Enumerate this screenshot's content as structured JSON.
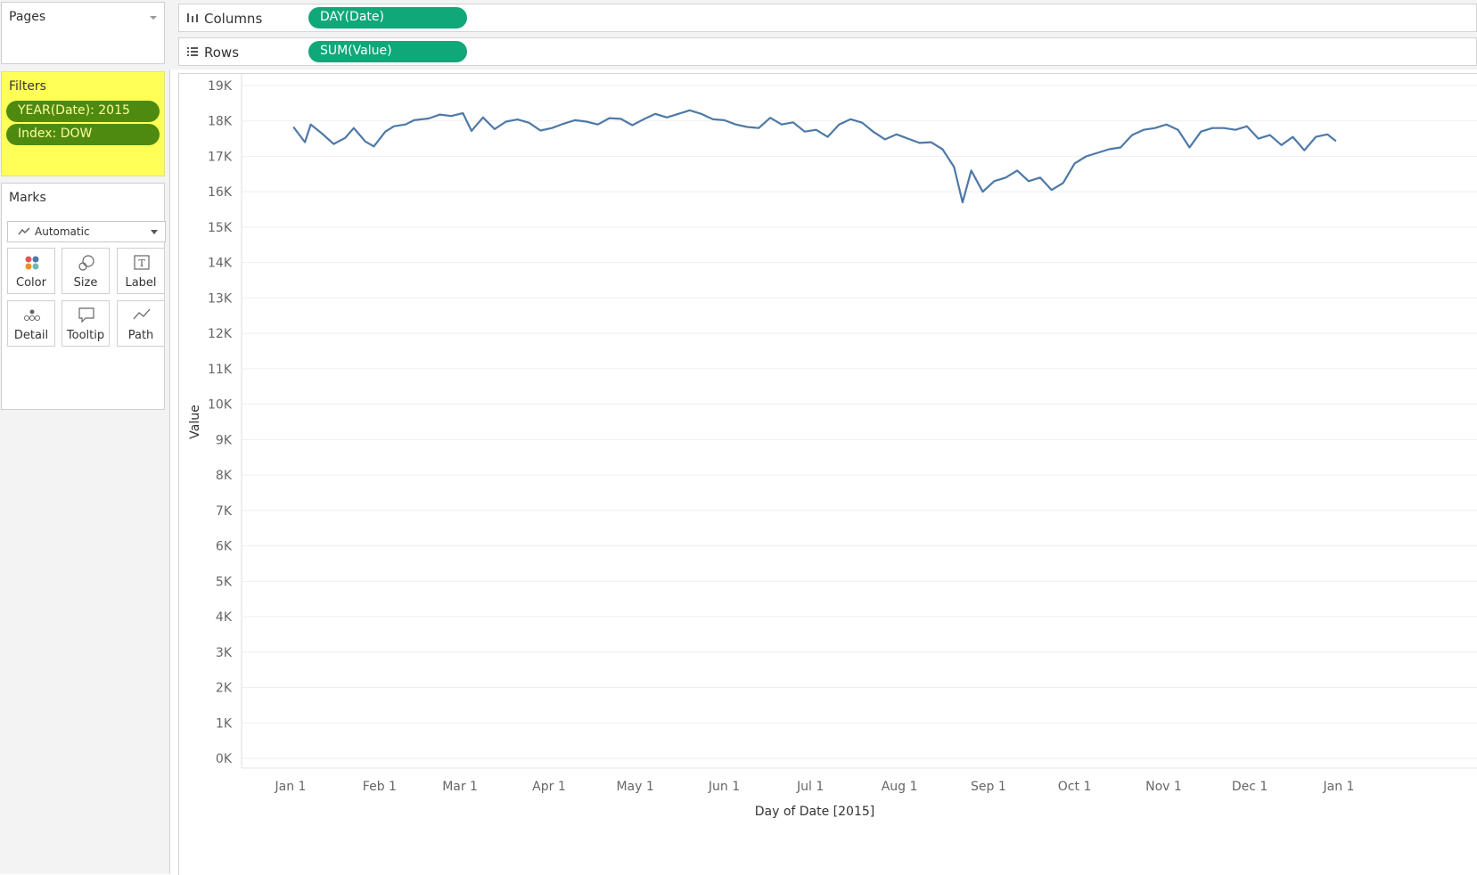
{
  "pages": {
    "title": "Pages"
  },
  "filters": {
    "title": "Filters",
    "items": [
      {
        "label": "YEAR(Date): 2015"
      },
      {
        "label": "Index: DOW"
      }
    ]
  },
  "marks": {
    "title": "Marks",
    "type": "Automatic",
    "buttons": [
      {
        "label": "Color",
        "icon": "color-icon"
      },
      {
        "label": "Size",
        "icon": "size-icon"
      },
      {
        "label": "Label",
        "icon": "label-icon"
      },
      {
        "label": "Detail",
        "icon": "detail-icon"
      },
      {
        "label": "Tooltip",
        "icon": "tooltip-icon"
      },
      {
        "label": "Path",
        "icon": "path-icon"
      }
    ]
  },
  "shelves": {
    "columns": {
      "name": "Columns",
      "pill": "DAY(Date)"
    },
    "rows": {
      "name": "Rows",
      "pill": "SUM(Value)"
    }
  },
  "colors": {
    "filter_bg": "#ffff57",
    "filter_pill": "#4f8a10",
    "shelf_pill": "#10a779",
    "line": "#4e79a7"
  },
  "chart_data": {
    "type": "line",
    "xlabel": "Day of Date [2015]",
    "ylabel": "Value",
    "ylim": [
      0,
      19000
    ],
    "yticks": [
      0,
      1000,
      2000,
      3000,
      4000,
      5000,
      6000,
      7000,
      8000,
      9000,
      10000,
      11000,
      12000,
      13000,
      14000,
      15000,
      16000,
      17000,
      18000,
      19000
    ],
    "ytick_labels": [
      "0K",
      "1K",
      "2K",
      "3K",
      "4K",
      "5K",
      "6K",
      "7K",
      "8K",
      "9K",
      "10K",
      "11K",
      "12K",
      "13K",
      "14K",
      "15K",
      "16K",
      "17K",
      "18K",
      "19K"
    ],
    "xtick_labels": [
      "Jan 1",
      "Feb 1",
      "Mar 1",
      "Apr 1",
      "May 1",
      "Jun 1",
      "Jul 1",
      "Aug 1",
      "Sep 1",
      "Oct 1",
      "Nov 1",
      "Dec 1",
      "Jan 1"
    ],
    "xtick_dates": [
      "2015-01-01",
      "2015-02-01",
      "2015-03-01",
      "2015-04-01",
      "2015-05-01",
      "2015-06-01",
      "2015-07-01",
      "2015-08-01",
      "2015-09-01",
      "2015-10-01",
      "2015-11-01",
      "2015-12-01",
      "2016-01-01"
    ],
    "grid": true,
    "series": [
      {
        "x": [
          "2015-01-02",
          "2015-01-06",
          "2015-01-08",
          "2015-01-12",
          "2015-01-16",
          "2015-01-20",
          "2015-01-23",
          "2015-01-27",
          "2015-01-30",
          "2015-02-03",
          "2015-02-06",
          "2015-02-10",
          "2015-02-13",
          "2015-02-18",
          "2015-02-22",
          "2015-02-26",
          "2015-03-02",
          "2015-03-05",
          "2015-03-09",
          "2015-03-13",
          "2015-03-17",
          "2015-03-21",
          "2015-03-25",
          "2015-03-29",
          "2015-04-02",
          "2015-04-06",
          "2015-04-10",
          "2015-04-14",
          "2015-04-18",
          "2015-04-22",
          "2015-04-26",
          "2015-04-30",
          "2015-05-04",
          "2015-05-08",
          "2015-05-12",
          "2015-05-16",
          "2015-05-20",
          "2015-05-24",
          "2015-05-28",
          "2015-06-01",
          "2015-06-05",
          "2015-06-09",
          "2015-06-13",
          "2015-06-17",
          "2015-06-21",
          "2015-06-25",
          "2015-06-29",
          "2015-07-03",
          "2015-07-07",
          "2015-07-11",
          "2015-07-15",
          "2015-07-19",
          "2015-07-23",
          "2015-07-27",
          "2015-07-31",
          "2015-08-04",
          "2015-08-08",
          "2015-08-12",
          "2015-08-16",
          "2015-08-20",
          "2015-08-23",
          "2015-08-26",
          "2015-08-30",
          "2015-09-03",
          "2015-09-07",
          "2015-09-11",
          "2015-09-15",
          "2015-09-19",
          "2015-09-23",
          "2015-09-27",
          "2015-10-01",
          "2015-10-05",
          "2015-10-09",
          "2015-10-13",
          "2015-10-17",
          "2015-10-21",
          "2015-10-25",
          "2015-10-29",
          "2015-11-02",
          "2015-11-06",
          "2015-11-10",
          "2015-11-14",
          "2015-11-18",
          "2015-11-22",
          "2015-11-26",
          "2015-11-30",
          "2015-12-04",
          "2015-12-08",
          "2015-12-12",
          "2015-12-16",
          "2015-12-20",
          "2015-12-24",
          "2015-12-28",
          "2015-12-31"
        ],
        "y": [
          17830,
          17400,
          17900,
          17640,
          17350,
          17520,
          17800,
          17420,
          17280,
          17700,
          17850,
          17900,
          18020,
          18070,
          18180,
          18140,
          18220,
          17720,
          18100,
          17770,
          17980,
          18040,
          17950,
          17730,
          17800,
          17920,
          18020,
          17980,
          17900,
          18080,
          18060,
          17880,
          18050,
          18200,
          18100,
          18200,
          18300,
          18200,
          18050,
          18020,
          17900,
          17830,
          17800,
          18090,
          17900,
          17960,
          17700,
          17750,
          17550,
          17900,
          18050,
          17950,
          17690,
          17480,
          17620,
          17500,
          17380,
          17400,
          17200,
          16700,
          15700,
          16600,
          16000,
          16300,
          16400,
          16600,
          16300,
          16400,
          16050,
          16250,
          16800,
          17000,
          17100,
          17200,
          17250,
          17600,
          17750,
          17800,
          17900,
          17750,
          17250,
          17700,
          17800,
          17800,
          17750,
          17850,
          17500,
          17600,
          17320,
          17550,
          17170,
          17550,
          17620,
          17430
        ]
      }
    ]
  }
}
